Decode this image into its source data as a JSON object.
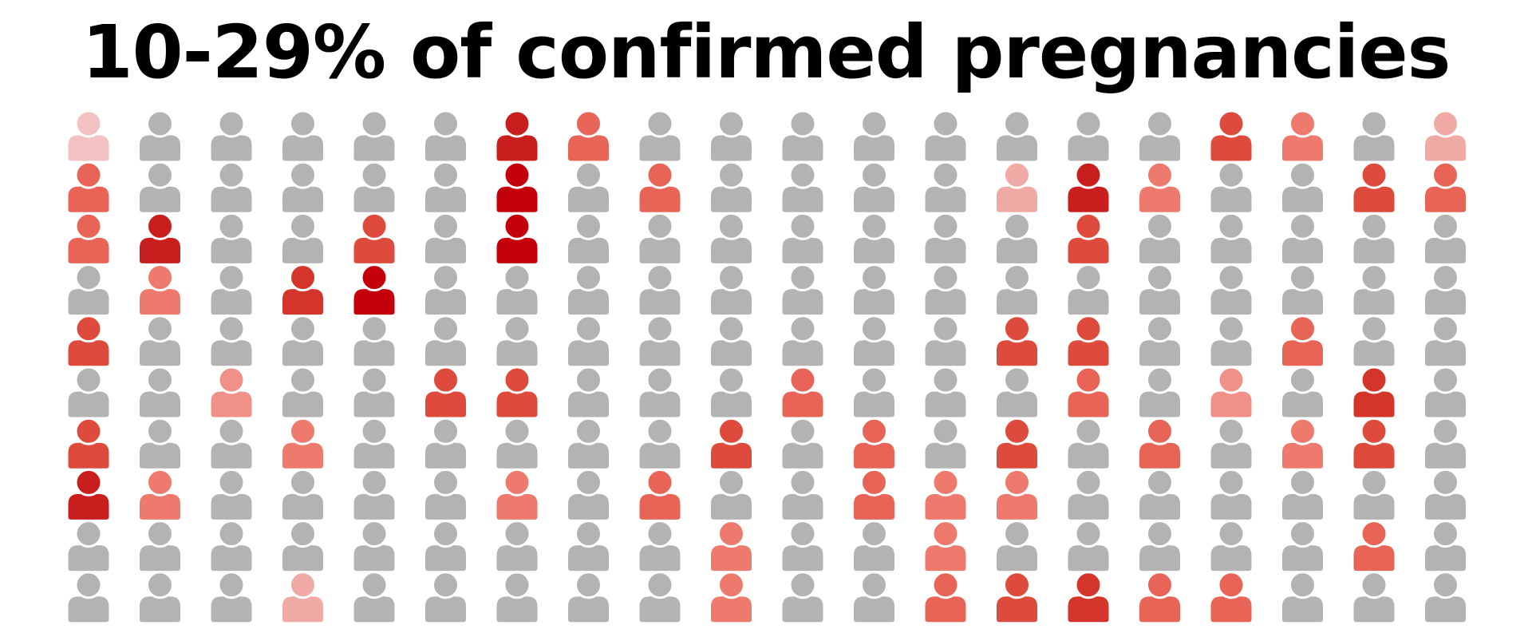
{
  "title": "10-29% of confirmed pregnancies",
  "colors": {
    "background": "#ffffff",
    "title": "#000000",
    "inactive": "#b3b3b3",
    "outline": "#ffffff",
    "shades": {
      "r1": "#f2c1c1",
      "r2": "#f0aaa6",
      "r3": "#ef9188",
      "r4": "#ed7a6c",
      "r5": "#e76456",
      "r6": "#de4b3c",
      "r7": "#d3352b",
      "r8": "#c91e1e",
      "r9": "#c4000b"
    }
  },
  "icon": "person-icon",
  "grid": {
    "columns": 20,
    "rows": 10,
    "cells": [
      [
        "r1",
        "r5",
        "r5",
        "0",
        "r6",
        "0",
        "r6",
        "r8",
        "0",
        "0"
      ],
      [
        "0",
        "0",
        "r8",
        "r4",
        "0",
        "0",
        "0",
        "r4",
        "0",
        "0"
      ],
      [
        "0",
        "0",
        "0",
        "0",
        "0",
        "r3",
        "0",
        "0",
        "0",
        "0"
      ],
      [
        "0",
        "0",
        "0",
        "r7",
        "0",
        "0",
        "r4",
        "0",
        "0",
        "r2"
      ],
      [
        "0",
        "0",
        "r6",
        "r9",
        "0",
        "0",
        "0",
        "0",
        "0",
        "0"
      ],
      [
        "0",
        "0",
        "0",
        "0",
        "0",
        "r6",
        "0",
        "0",
        "0",
        "0"
      ],
      [
        "r8",
        "r9",
        "r9",
        "0",
        "0",
        "r6",
        "0",
        "r4",
        "0",
        "0"
      ],
      [
        "r5",
        "0",
        "0",
        "0",
        "0",
        "0",
        "0",
        "0",
        "0",
        "0"
      ],
      [
        "0",
        "r5",
        "0",
        "0",
        "0",
        "0",
        "0",
        "r5",
        "0",
        "0"
      ],
      [
        "0",
        "0",
        "0",
        "0",
        "0",
        "0",
        "r6",
        "0",
        "r4",
        "r4"
      ],
      [
        "0",
        "0",
        "0",
        "0",
        "0",
        "r5",
        "0",
        "0",
        "0",
        "0"
      ],
      [
        "0",
        "0",
        "0",
        "0",
        "0",
        "0",
        "r5",
        "r5",
        "0",
        "0"
      ],
      [
        "0",
        "0",
        "0",
        "0",
        "0",
        "0",
        "0",
        "r4",
        "r4",
        "r5"
      ],
      [
        "0",
        "r2",
        "0",
        "0",
        "r6",
        "0",
        "r6",
        "r4",
        "0",
        "r6"
      ],
      [
        "0",
        "r8",
        "r6",
        "0",
        "r6",
        "r5",
        "0",
        "0",
        "0",
        "r7"
      ],
      [
        "0",
        "r4",
        "0",
        "0",
        "0",
        "0",
        "r5",
        "0",
        "0",
        "r5"
      ],
      [
        "r6",
        "0",
        "0",
        "0",
        "0",
        "r3",
        "0",
        "0",
        "0",
        "r5"
      ],
      [
        "r4",
        "0",
        "0",
        "0",
        "r5",
        "0",
        "r4",
        "0",
        "0",
        "0"
      ],
      [
        "0",
        "r6",
        "0",
        "0",
        "0",
        "r7",
        "r6",
        "0",
        "r5",
        "0"
      ],
      [
        "r2",
        "r5",
        "0",
        "0",
        "0",
        "0",
        "0",
        "0",
        "0",
        "0"
      ]
    ]
  }
}
